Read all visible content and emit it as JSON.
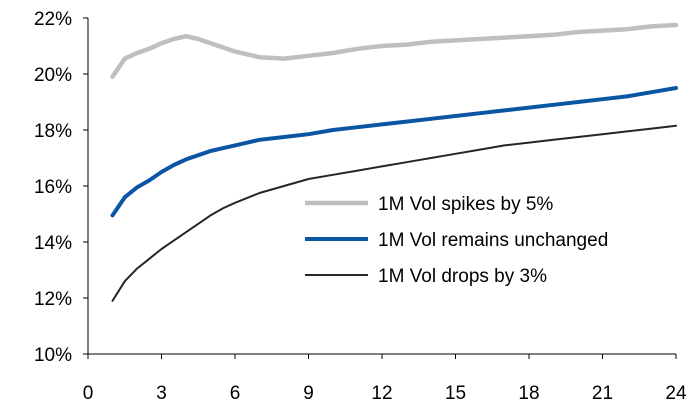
{
  "chart_data": {
    "type": "line",
    "xlim": [
      0,
      24
    ],
    "ylim": [
      10,
      22
    ],
    "x_ticks": [
      "0",
      "3",
      "6",
      "9",
      "12",
      "15",
      "18",
      "21",
      "24"
    ],
    "y_ticks": [
      "10%",
      "12%",
      "14%",
      "16%",
      "18%",
      "20%",
      "22%"
    ],
    "grid": false,
    "legend_position": "bottom-right",
    "series": [
      {
        "name": "1M Vol spikes by 5%",
        "color": "#bfbfbf",
        "x": [
          1,
          1.5,
          2,
          2.5,
          3,
          3.5,
          4,
          4.5,
          5,
          5.5,
          6,
          7,
          8,
          9,
          10,
          11,
          12,
          13,
          14,
          15,
          16,
          17,
          18,
          19,
          20,
          21,
          22,
          23,
          24
        ],
        "y": [
          19.9,
          20.55,
          20.75,
          20.9,
          21.1,
          21.25,
          21.35,
          21.25,
          21.1,
          20.95,
          20.8,
          20.6,
          20.55,
          20.65,
          20.75,
          20.9,
          21.0,
          21.05,
          21.15,
          21.2,
          21.25,
          21.3,
          21.35,
          21.4,
          21.5,
          21.55,
          21.6,
          21.7,
          21.75
        ]
      },
      {
        "name": "1M Vol remains unchanged",
        "color": "#0b56a4",
        "x": [
          1,
          1.5,
          2,
          2.5,
          3,
          3.5,
          4,
          4.5,
          5,
          5.5,
          6,
          7,
          8,
          9,
          10,
          11,
          12,
          13,
          14,
          15,
          16,
          17,
          18,
          19,
          20,
          21,
          22,
          23,
          24
        ],
        "y": [
          14.95,
          15.6,
          15.95,
          16.2,
          16.5,
          16.75,
          16.95,
          17.1,
          17.25,
          17.35,
          17.45,
          17.65,
          17.75,
          17.85,
          18.0,
          18.1,
          18.2,
          18.3,
          18.4,
          18.5,
          18.6,
          18.7,
          18.8,
          18.9,
          19.0,
          19.1,
          19.2,
          19.35,
          19.5
        ]
      },
      {
        "name": "1M Vol drops by 3%",
        "color": "#262626",
        "x": [
          1,
          1.5,
          2,
          2.5,
          3,
          3.5,
          4,
          4.5,
          5,
          5.5,
          6,
          7,
          8,
          9,
          10,
          11,
          12,
          13,
          14,
          15,
          16,
          17,
          18,
          19,
          20,
          21,
          22,
          23,
          24
        ],
        "y": [
          11.9,
          12.6,
          13.05,
          13.4,
          13.75,
          14.05,
          14.35,
          14.65,
          14.95,
          15.2,
          15.4,
          15.75,
          16.0,
          16.25,
          16.4,
          16.55,
          16.7,
          16.85,
          17.0,
          17.15,
          17.3,
          17.45,
          17.55,
          17.65,
          17.75,
          17.85,
          17.95,
          18.05,
          18.15
        ]
      }
    ]
  }
}
